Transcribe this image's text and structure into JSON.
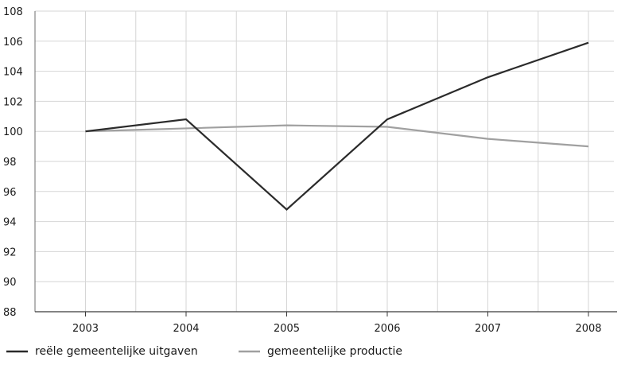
{
  "chart_data": {
    "type": "line",
    "title": "",
    "xlabel": "",
    "ylabel": "",
    "x": [
      "2003",
      "2004",
      "2005",
      "2006",
      "2007",
      "2008"
    ],
    "ylim": [
      88,
      108
    ],
    "yticks": [
      88,
      90,
      92,
      94,
      96,
      98,
      100,
      102,
      104,
      106,
      108
    ],
    "grid": true,
    "legend_position": "bottom-left",
    "series": [
      {
        "name": "reële gemeentelijke uitgaven",
        "values": [
          100,
          100.8,
          94.8,
          100.8,
          103.6,
          105.9
        ],
        "color": "#2b2b2b"
      },
      {
        "name": "gemeentelijke productie",
        "values": [
          100,
          100.2,
          100.4,
          100.3,
          99.5,
          99.0
        ],
        "color": "#a0a0a0"
      }
    ]
  }
}
